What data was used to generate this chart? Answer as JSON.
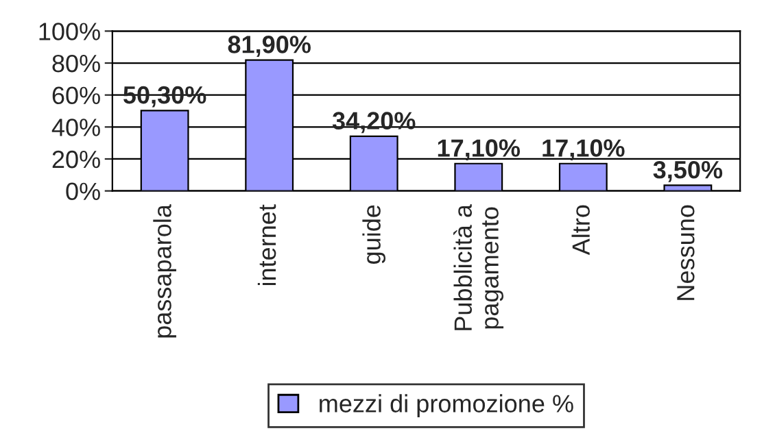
{
  "chart_data": {
    "type": "bar",
    "categories": [
      "passaparola",
      "internet",
      "guide",
      "Pubblicità a\npagamento",
      "Altro",
      "Nessuno"
    ],
    "series": [
      {
        "name": "mezzi di promozione %",
        "color": "#9999ff",
        "values": [
          50.3,
          81.9,
          34.2,
          17.1,
          17.1,
          3.5
        ],
        "value_labels": [
          "50,30%",
          "81,90%",
          "34,20%",
          "17,10%",
          "17,10%",
          "3,50%"
        ]
      }
    ],
    "ylim": [
      0,
      100
    ],
    "yticks": [
      {
        "value": 0,
        "label": "0%"
      },
      {
        "value": 20,
        "label": "20%"
      },
      {
        "value": 40,
        "label": "40%"
      },
      {
        "value": 60,
        "label": "60%"
      },
      {
        "value": 80,
        "label": "80%"
      },
      {
        "value": 100,
        "label": "100%"
      }
    ],
    "grid": "y",
    "legend": "bottom"
  }
}
